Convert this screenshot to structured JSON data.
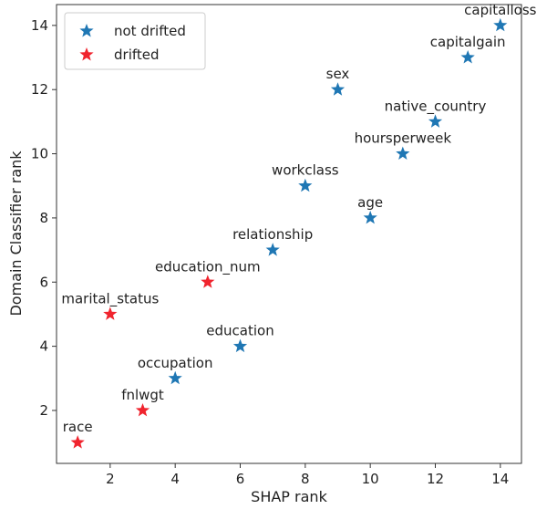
{
  "chart_data": {
    "type": "scatter",
    "title": "",
    "xlabel": "SHAP rank",
    "ylabel": "Domain Classifier rank",
    "xlim": [
      0.35,
      14.65
    ],
    "ylim": [
      0.35,
      14.65
    ],
    "xticks": [
      2,
      4,
      6,
      8,
      10,
      12,
      14
    ],
    "yticks": [
      2,
      4,
      6,
      8,
      10,
      12,
      14
    ],
    "grid": false,
    "marker": "star",
    "legend": {
      "placement": "top-left",
      "entries": [
        {
          "label": "not drifted",
          "color": "#1f77b4"
        },
        {
          "label": "drifted",
          "color": "#f0242e"
        }
      ]
    },
    "points": [
      {
        "label": "capitalloss",
        "x": 14,
        "y": 14,
        "drifted": false
      },
      {
        "label": "capitalgain",
        "x": 13,
        "y": 13,
        "drifted": false
      },
      {
        "label": "sex",
        "x": 9,
        "y": 12,
        "drifted": false
      },
      {
        "label": "native_country",
        "x": 12,
        "y": 11,
        "drifted": false
      },
      {
        "label": "hoursperweek",
        "x": 11,
        "y": 10,
        "drifted": false
      },
      {
        "label": "workclass",
        "x": 8,
        "y": 9,
        "drifted": false
      },
      {
        "label": "age",
        "x": 10,
        "y": 8,
        "drifted": false
      },
      {
        "label": "relationship",
        "x": 7,
        "y": 7,
        "drifted": false
      },
      {
        "label": "education_num",
        "x": 5,
        "y": 6,
        "drifted": true
      },
      {
        "label": "marital_status",
        "x": 2,
        "y": 5,
        "drifted": true
      },
      {
        "label": "education",
        "x": 6,
        "y": 4,
        "drifted": false
      },
      {
        "label": "occupation",
        "x": 4,
        "y": 3,
        "drifted": false
      },
      {
        "label": "fnlwgt",
        "x": 3,
        "y": 2,
        "drifted": true
      },
      {
        "label": "race",
        "x": 1,
        "y": 1,
        "drifted": true
      }
    ]
  }
}
